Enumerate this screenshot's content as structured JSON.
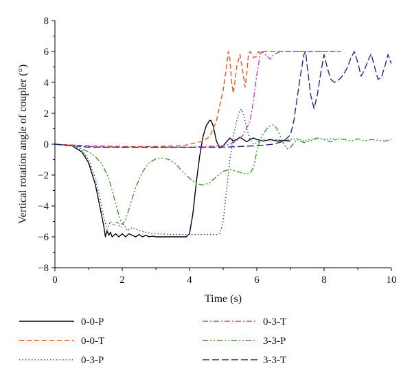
{
  "chart_data": {
    "type": "line",
    "title": "",
    "xlabel": "Time (s)",
    "ylabel": "Vertical rotation angle of coupler (°)",
    "xlim": [
      0,
      10
    ],
    "ylim": [
      -8,
      8
    ],
    "xticks": [
      "0",
      "2",
      "4",
      "6",
      "8",
      "10"
    ],
    "yticks": [
      "−8",
      "−6",
      "−4",
      "−2",
      "0",
      "2",
      "4",
      "6",
      "8"
    ],
    "grid": false,
    "legend_position": "bottom",
    "series": [
      {
        "name": "0-0-P",
        "color": "#000000",
        "dash": "solid",
        "x": [
          0,
          0.5,
          0.8,
          1.0,
          1.2,
          1.35,
          1.45,
          1.5,
          1.55,
          1.6,
          1.65,
          1.7,
          1.8,
          1.9,
          2.0,
          2.1,
          2.2,
          2.3,
          2.4,
          2.5,
          2.6,
          2.7,
          2.8,
          2.9,
          3.0,
          3.5,
          3.9,
          4.0,
          4.1,
          4.2,
          4.3,
          4.4,
          4.5,
          4.6,
          4.65,
          4.7,
          4.8,
          4.9,
          5.0,
          5.1,
          5.2,
          5.3,
          5.4,
          5.5,
          5.6,
          5.7,
          5.8,
          5.9,
          6.0,
          6.2,
          6.4,
          6.6,
          6.8,
          7.0
        ],
        "y": [
          0,
          -0.1,
          -0.5,
          -1.2,
          -2.6,
          -4.2,
          -5.3,
          -6.0,
          -5.6,
          -5.9,
          -5.7,
          -6.0,
          -5.8,
          -6.0,
          -5.8,
          -6.0,
          -5.8,
          -5.9,
          -6.0,
          -5.85,
          -6.0,
          -5.9,
          -6.0,
          -5.95,
          -6.0,
          -6.0,
          -6.0,
          -5.8,
          -4.5,
          -2.5,
          -0.8,
          0.5,
          1.2,
          1.55,
          1.5,
          1.2,
          0.2,
          -0.25,
          -0.1,
          0.15,
          0.4,
          0.2,
          0.3,
          0.45,
          0.3,
          0.15,
          0.3,
          0.4,
          0.3,
          0.2,
          0.3,
          0.2,
          0.25,
          0.2
        ]
      },
      {
        "name": "0-0-T",
        "color": "#e8541a",
        "dash": "dashed",
        "x": [
          0,
          1.0,
          2.0,
          3.0,
          3.8,
          4.0,
          4.2,
          4.4,
          4.6,
          4.8,
          5.0,
          5.1,
          5.15,
          5.2,
          5.25,
          5.3,
          5.35,
          5.4,
          5.5,
          5.6,
          5.65,
          5.7,
          5.75,
          5.8,
          5.9,
          6.0,
          6.05,
          6.1,
          6.2,
          6.4,
          6.6,
          6.8,
          7.0,
          7.5,
          8.0,
          8.5
        ],
        "y": [
          0,
          -0.1,
          -0.15,
          -0.15,
          -0.1,
          0,
          0.1,
          0.2,
          0.5,
          1.5,
          3.5,
          5.0,
          6.0,
          5.5,
          4.0,
          3.3,
          4.0,
          5.0,
          5.8,
          4.5,
          3.7,
          4.5,
          5.8,
          6.0,
          5.6,
          5.7,
          6.0,
          5.9,
          6.0,
          6.0,
          6.0,
          6.0,
          6.0,
          6.0,
          6.0,
          6.0
        ]
      },
      {
        "name": "0-3-P",
        "color": "#2a3a9a",
        "dash": "dotted",
        "x": [
          0,
          0.5,
          0.8,
          1.0,
          1.2,
          1.35,
          1.45,
          1.55,
          1.65,
          1.75,
          1.85,
          1.95,
          2.05,
          2.15,
          2.3,
          2.5,
          2.7,
          2.9,
          3.0,
          3.5,
          4.0,
          4.5,
          4.8,
          4.9,
          5.0,
          5.1,
          5.2,
          5.3,
          5.4,
          5.5,
          5.55,
          5.6,
          5.7,
          5.8,
          5.9,
          6.0,
          6.2,
          6.4,
          6.6,
          6.8,
          7.0,
          7.2,
          7.4,
          7.6,
          7.8,
          8.0,
          8.2,
          8.4
        ],
        "y": [
          0,
          -0.1,
          -0.4,
          -1.0,
          -2.2,
          -3.6,
          -4.7,
          -5.5,
          -5.0,
          -5.3,
          -5.0,
          -5.4,
          -5.2,
          -5.6,
          -5.4,
          -5.6,
          -5.7,
          -5.8,
          -5.8,
          -5.85,
          -5.85,
          -5.85,
          -5.85,
          -5.8,
          -5.0,
          -3.0,
          -1.0,
          0.5,
          1.5,
          2.2,
          2.25,
          2.0,
          1.0,
          0.3,
          0.0,
          0.1,
          0.3,
          0.2,
          0.3,
          0.2,
          0.3,
          0.35,
          0.2,
          0.3,
          0.4,
          0.3,
          0.35,
          0.3
        ]
      },
      {
        "name": "0-3-T",
        "color": "#c040c8",
        "dash": "dashdot",
        "x": [
          0,
          1.0,
          2.0,
          3.0,
          4.0,
          4.5,
          5.0,
          5.2,
          5.4,
          5.6,
          5.8,
          5.9,
          6.0,
          6.1,
          6.15,
          6.2,
          6.3,
          6.4,
          6.5,
          6.6,
          6.7,
          6.8,
          7.0,
          7.5,
          8.0,
          8.5
        ],
        "y": [
          0,
          -0.15,
          -0.2,
          -0.2,
          -0.2,
          -0.15,
          -0.1,
          0,
          0.2,
          0.6,
          1.5,
          2.8,
          4.5,
          5.8,
          6.0,
          5.9,
          5.7,
          5.5,
          5.8,
          5.9,
          6.0,
          6.0,
          6.0,
          6.0,
          6.0,
          6.0
        ]
      },
      {
        "name": "3-3-P",
        "color": "#3a9a2a",
        "dash": "dashdotdot",
        "x": [
          0,
          0.5,
          0.8,
          1.0,
          1.2,
          1.4,
          1.6,
          1.8,
          1.9,
          2.0,
          2.1,
          2.2,
          2.4,
          2.6,
          2.8,
          3.0,
          3.2,
          3.4,
          3.6,
          3.8,
          4.0,
          4.2,
          4.4,
          4.6,
          4.8,
          5.0,
          5.2,
          5.4,
          5.6,
          5.8,
          5.9,
          6.0,
          6.1,
          6.2,
          6.3,
          6.4,
          6.5,
          6.6,
          6.7,
          6.8,
          6.9,
          7.0,
          7.2,
          7.4,
          7.6,
          7.8,
          8.0,
          8.2,
          8.4,
          8.6,
          8.8,
          9.0,
          9.2,
          9.4,
          9.6,
          9.8,
          10.0
        ],
        "y": [
          0,
          -0.1,
          -0.3,
          -0.5,
          -0.8,
          -1.3,
          -2.2,
          -3.8,
          -4.6,
          -5.2,
          -4.9,
          -4.2,
          -2.8,
          -1.8,
          -1.2,
          -0.95,
          -0.9,
          -1.0,
          -1.3,
          -1.8,
          -2.2,
          -2.55,
          -2.65,
          -2.5,
          -2.1,
          -1.75,
          -1.65,
          -1.75,
          -1.9,
          -1.9,
          -1.5,
          -0.5,
          0.3,
          0.7,
          1.0,
          1.2,
          1.25,
          1.0,
          0.5,
          0.0,
          -0.3,
          -0.2,
          0.3,
          0.1,
          0.2,
          0.4,
          0.3,
          0.15,
          0.35,
          0.3,
          0.2,
          0.35,
          0.2,
          0.3,
          0.25,
          0.2,
          0.3
        ]
      },
      {
        "name": "3-3-T",
        "color": "#1e2a8a",
        "dash": "longdash",
        "x": [
          0,
          1.0,
          2.0,
          3.0,
          4.0,
          5.0,
          6.0,
          6.5,
          6.8,
          7.0,
          7.1,
          7.2,
          7.3,
          7.4,
          7.45,
          7.5,
          7.6,
          7.7,
          7.8,
          7.9,
          8.0,
          8.1,
          8.2,
          8.3,
          8.4,
          8.5,
          8.6,
          8.7,
          8.8,
          8.9,
          9.0,
          9.1,
          9.2,
          9.3,
          9.4,
          9.5,
          9.6,
          9.7,
          9.8,
          9.9,
          10.0
        ],
        "y": [
          0,
          -0.2,
          -0.2,
          -0.2,
          -0.2,
          -0.2,
          -0.1,
          0,
          0.2,
          0.6,
          1.5,
          3.0,
          4.5,
          5.8,
          6.0,
          5.0,
          3.2,
          2.3,
          3.2,
          4.6,
          5.8,
          4.9,
          4.2,
          4.0,
          4.1,
          4.3,
          4.6,
          5.0,
          5.6,
          6.0,
          5.3,
          4.4,
          4.8,
          5.4,
          5.85,
          5.0,
          4.2,
          4.3,
          5.0,
          5.8,
          5.2
        ]
      }
    ]
  }
}
